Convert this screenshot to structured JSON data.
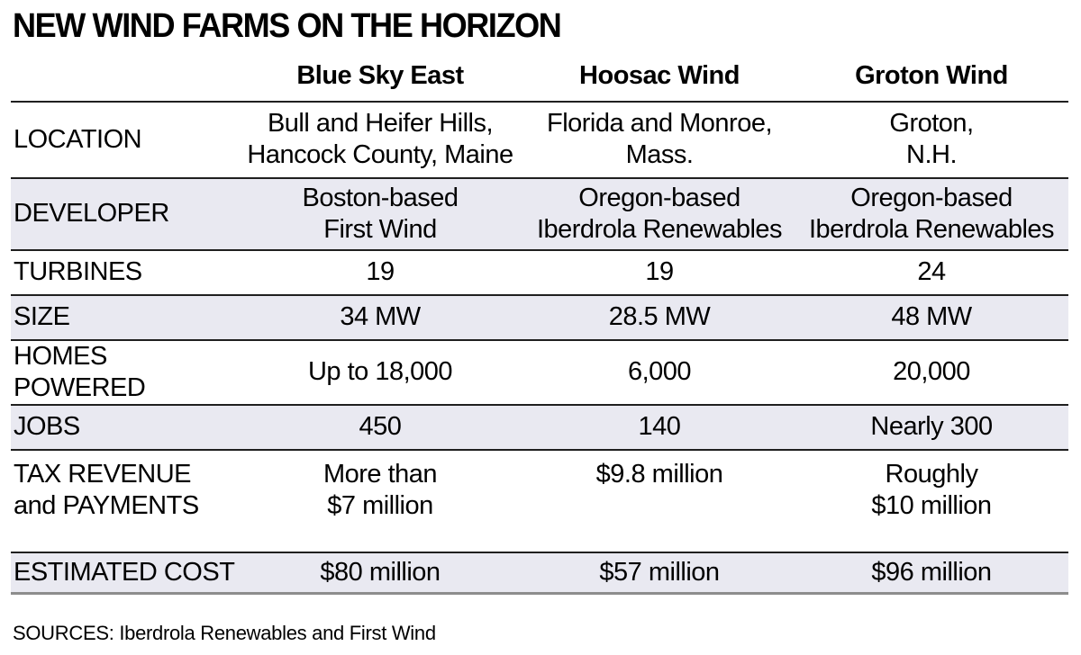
{
  "title": "NEW WIND FARMS ON THE HORIZON",
  "colors": {
    "background": "#ffffff",
    "shaded_band": "#e9e9f1",
    "rule_dark": "#1f1f1f",
    "rule_bottom_gray": "#8d8d8d",
    "text": "#000000"
  },
  "columns": {
    "col1": "Blue Sky East",
    "col2": "Hoosac Wind",
    "col3": "Groton Wind"
  },
  "rows": [
    {
      "label": "LOCATION",
      "values": [
        "Bull and Heifer Hills,\nHancock County, Maine",
        "Florida and Monroe,\nMass.",
        "Groton,\nN.H."
      ]
    },
    {
      "label": "DEVELOPER",
      "values": [
        "Boston-based\nFirst Wind",
        "Oregon-based\nIberdrola Renewables",
        "Oregon-based\nIberdrola Renewables"
      ]
    },
    {
      "label": "TURBINES",
      "values": [
        "19",
        "19",
        "24"
      ]
    },
    {
      "label": "SIZE",
      "values": [
        "34 MW",
        "28.5 MW",
        "48 MW"
      ]
    },
    {
      "label": "HOMES POWERED",
      "values": [
        "Up to 18,000",
        "6,000",
        "20,000"
      ]
    },
    {
      "label": "JOBS",
      "values": [
        "450",
        "140",
        "Nearly 300"
      ]
    },
    {
      "label": "TAX REVENUE\nand PAYMENTS",
      "values": [
        "More than\n$7 million",
        "$9.8 million",
        "Roughly\n$10 million"
      ]
    },
    {
      "label": "ESTIMATED COST",
      "values": [
        "$80 million",
        "$57 million",
        "$96 million"
      ]
    }
  ],
  "source_line": "SOURCES: Iberdrola Renewables and First Wind",
  "chart_data": {
    "type": "table",
    "title": "NEW WIND FARMS ON THE HORIZON",
    "columns": [
      "",
      "Blue Sky East",
      "Hoosac Wind",
      "Groton Wind"
    ],
    "rows": [
      [
        "LOCATION",
        "Bull and Heifer Hills, Hancock County, Maine",
        "Florida and Monroe, Mass.",
        "Groton, N.H."
      ],
      [
        "DEVELOPER",
        "Boston-based First Wind",
        "Oregon-based Iberdrola Renewables",
        "Oregon-based Iberdrola Renewables"
      ],
      [
        "TURBINES",
        "19",
        "19",
        "24"
      ],
      [
        "SIZE",
        "34 MW",
        "28.5 MW",
        "48 MW"
      ],
      [
        "HOMES POWERED",
        "Up to 18,000",
        "6,000",
        "20,000"
      ],
      [
        "JOBS",
        "450",
        "140",
        "Nearly 300"
      ],
      [
        "TAX REVENUE and PAYMENTS",
        "More than $7 million",
        "$9.8 million",
        "Roughly $10 million"
      ],
      [
        "ESTIMATED COST",
        "$80 million",
        "$57 million",
        "$96 million"
      ]
    ],
    "turbines": [
      19,
      19,
      24
    ],
    "size_mw": [
      34,
      28.5,
      48
    ],
    "homes_powered": [
      18000,
      6000,
      20000
    ],
    "jobs": [
      450,
      140,
      300
    ],
    "tax_revenue_millions": [
      7,
      9.8,
      10
    ],
    "estimated_cost_millions": [
      80,
      57,
      96
    ],
    "source": "SOURCES: Iberdrola Renewables and First Wind",
    "layout": {
      "shaded_rows": [
        "DEVELOPER",
        "SIZE",
        "JOBS",
        "ESTIMATED COST"
      ],
      "grid": "horizontal rules between rows"
    }
  }
}
